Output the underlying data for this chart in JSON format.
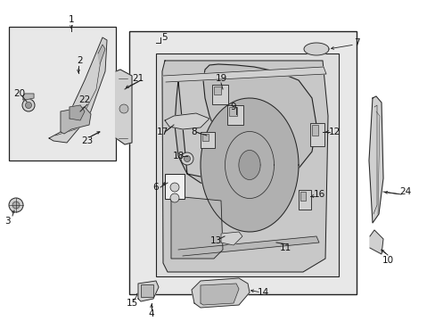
{
  "bg_color": "#ffffff",
  "box_fill": "#e8e8e8",
  "line_color": "#222222",
  "part_fill": "#d0d0d0",
  "part_fill2": "#b8b8b8",
  "white": "#f5f5f5"
}
